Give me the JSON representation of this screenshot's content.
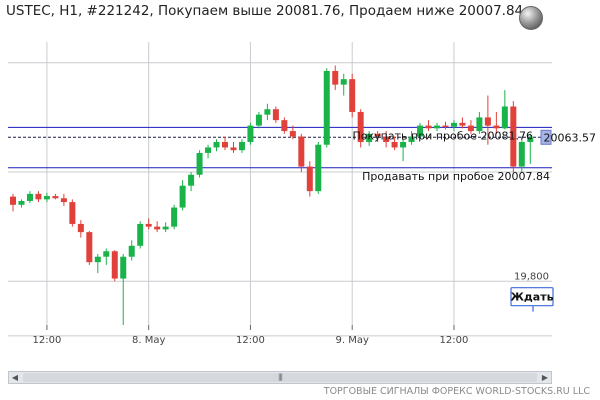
{
  "window": {
    "title": "USTEC, H1, #221242, Покупаем выше 20081.76, Продаем ниже 20007.84",
    "globe_icon": "globe-icon",
    "footer": "ТОРГОВЫЕ СИГНАЛЫ ФОРЕКС WORLD-STOCKS.RU LLC",
    "scroll_left_icon": "arrow-left-icon",
    "scroll_right_icon": "arrow-right-icon",
    "scroll_grip": "|||"
  },
  "colors": {
    "bull": "#1ab34a",
    "bear": "#e0413a",
    "level_line": "#1c1cbd",
    "grid": "#c8ccd0",
    "current_label_bg": "#a7b3e6"
  },
  "chart_data": {
    "type": "candlestick",
    "symbol": "USTEC",
    "timeframe": "H1",
    "ylim": [
      19720,
      20260
    ],
    "y_ticks": [
      {
        "value": 19800,
        "label": "19,800"
      }
    ],
    "x_ticks": [
      "12:00",
      "8. May",
      "12:00",
      "9. May",
      "12:00"
    ],
    "levels": {
      "buy": {
        "value": 20081.76,
        "label": "Покупать при пробое 20081.76"
      },
      "sell": {
        "value": 20007.84,
        "label": "Продавать при пробое 20007.84"
      },
      "current": {
        "value": 20063.57,
        "label": "20063.57"
      }
    },
    "marker": {
      "label": "Ждать",
      "value": 19770
    },
    "candles": [
      [
        19955,
        19960,
        19928,
        19940
      ],
      [
        19940,
        19950,
        19935,
        19947
      ],
      [
        19947,
        19965,
        19943,
        19960
      ],
      [
        19960,
        19965,
        19945,
        19950
      ],
      [
        19950,
        19962,
        19945,
        19956
      ],
      [
        19956,
        19960,
        19950,
        19952
      ],
      [
        19952,
        19960,
        19938,
        19945
      ],
      [
        19945,
        19950,
        19900,
        19905
      ],
      [
        19905,
        19912,
        19880,
        19890
      ],
      [
        19890,
        19892,
        19830,
        19835
      ],
      [
        19835,
        19850,
        19815,
        19845
      ],
      [
        19845,
        19860,
        19830,
        19855
      ],
      [
        19855,
        19857,
        19800,
        19805
      ],
      [
        19805,
        19850,
        19720,
        19845
      ],
      [
        19845,
        19875,
        19838,
        19865
      ],
      [
        19865,
        19910,
        19860,
        19905
      ],
      [
        19905,
        19915,
        19895,
        19900
      ],
      [
        19900,
        19910,
        19890,
        19895
      ],
      [
        19895,
        19908,
        19890,
        19900
      ],
      [
        19900,
        19940,
        19895,
        19935
      ],
      [
        19935,
        19985,
        19930,
        19975
      ],
      [
        19975,
        20000,
        19965,
        19995
      ],
      [
        19995,
        20040,
        19990,
        20035
      ],
      [
        20035,
        20050,
        20025,
        20045
      ],
      [
        20045,
        20060,
        20038,
        20055
      ],
      [
        20055,
        20065,
        20040,
        20045
      ],
      [
        20045,
        20055,
        20035,
        20040
      ],
      [
        20040,
        20060,
        20035,
        20055
      ],
      [
        20055,
        20090,
        20050,
        20085
      ],
      [
        20085,
        20110,
        20080,
        20105
      ],
      [
        20105,
        20125,
        20095,
        20115
      ],
      [
        20115,
        20120,
        20090,
        20095
      ],
      [
        20095,
        20100,
        20070,
        20075
      ],
      [
        20075,
        20085,
        20060,
        20065
      ],
      [
        20065,
        20070,
        20000,
        20010
      ],
      [
        20010,
        20020,
        19955,
        19965
      ],
      [
        19965,
        20055,
        19960,
        20050
      ],
      [
        20050,
        20190,
        20045,
        20185
      ],
      [
        20185,
        20195,
        20150,
        20160
      ],
      [
        20160,
        20180,
        20140,
        20170
      ],
      [
        20170,
        20180,
        20100,
        20110
      ],
      [
        20110,
        20115,
        20045,
        20055
      ],
      [
        20055,
        20075,
        20048,
        20070
      ],
      [
        20070,
        20075,
        20055,
        20065
      ],
      [
        20065,
        20075,
        20045,
        20055
      ],
      [
        20055,
        20065,
        20040,
        20045
      ],
      [
        20045,
        20060,
        20020,
        20055
      ],
      [
        20055,
        20075,
        20050,
        20065
      ],
      [
        20065,
        20090,
        20060,
        20085
      ],
      [
        20085,
        20095,
        20075,
        20080
      ],
      [
        20080,
        20090,
        20075,
        20085
      ],
      [
        20085,
        20092,
        20078,
        20083
      ],
      [
        20083,
        20095,
        20075,
        20090
      ],
      [
        20090,
        20100,
        20080,
        20085
      ],
      [
        20085,
        20095,
        20070,
        20075
      ],
      [
        20075,
        20110,
        20070,
        20100
      ],
      [
        20100,
        20140,
        20050,
        20085
      ],
      [
        20085,
        20110,
        20070,
        20080
      ],
      [
        20080,
        20150,
        20078,
        20120
      ],
      [
        20120,
        20130,
        20000,
        20010
      ],
      [
        20010,
        20065,
        20000,
        20055
      ],
      [
        20055,
        20070,
        20015,
        20063
      ]
    ]
  }
}
